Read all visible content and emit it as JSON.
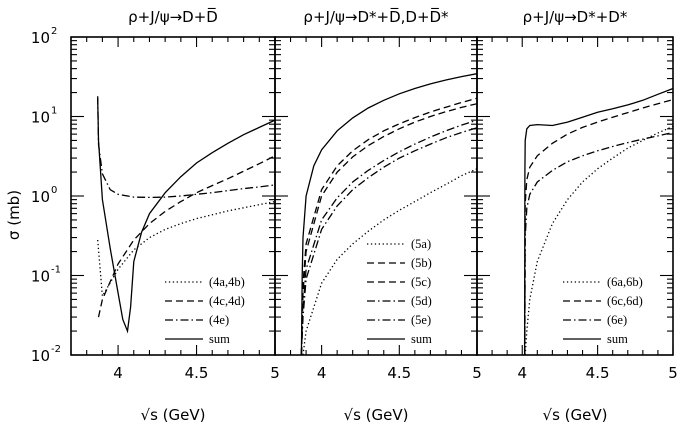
{
  "chart_data": {
    "type": "line",
    "shared_ylabel": "σ (mb)",
    "yscale": "log",
    "ylim": [
      0.01,
      100
    ],
    "xlim": [
      3.7,
      5.0
    ],
    "x_ticks": [
      "4",
      "4.5",
      "5"
    ],
    "y_tick_labels": [
      {
        "base": "10",
        "exp": "2"
      },
      {
        "base": "10",
        "exp": "1"
      },
      {
        "base": "10",
        "exp": "0"
      },
      {
        "base": "10",
        "exp": "-1"
      },
      {
        "base": "10",
        "exp": "-2"
      }
    ],
    "panels": [
      {
        "title": "ρ+J/ψ→D+D̅",
        "xlabel": "√s (GeV)",
        "series": [
          {
            "name": "(4a,4b)",
            "style": "dotted",
            "x": [
              3.87,
              3.9,
              4.0,
              4.1,
              4.2,
              4.3,
              4.4,
              4.5,
              4.6,
              4.7,
              4.8,
              4.9,
              5.0
            ],
            "y": [
              0.28,
              0.055,
              0.12,
              0.21,
              0.3,
              0.38,
              0.45,
              0.52,
              0.58,
              0.65,
              0.71,
              0.78,
              0.85
            ]
          },
          {
            "name": "(4c,4d)",
            "style": "dashed",
            "x": [
              3.875,
              3.9,
              4.0,
              4.1,
              4.2,
              4.3,
              4.4,
              4.5,
              4.6,
              4.7,
              4.8,
              4.9,
              5.0
            ],
            "y": [
              0.03,
              0.05,
              0.14,
              0.28,
              0.45,
              0.64,
              0.85,
              1.1,
              1.35,
              1.65,
              2.05,
              2.55,
              3.2
            ]
          },
          {
            "name": "(4e)",
            "style": "dashdot",
            "x": [
              3.87,
              3.875,
              3.9,
              3.95,
              4.0,
              4.1,
              4.2,
              4.3,
              4.4,
              4.5,
              4.6,
              4.7,
              4.8,
              4.9,
              5.0
            ],
            "y": [
              18,
              4.5,
              1.9,
              1.2,
              1.05,
              0.97,
              0.96,
              0.97,
              1.0,
              1.05,
              1.1,
              1.17,
              1.24,
              1.3,
              1.38
            ]
          },
          {
            "name": "sum",
            "style": "solid",
            "x": [
              3.87,
              3.875,
              3.9,
              3.95,
              4.0,
              4.03,
              4.06,
              4.08,
              4.1,
              4.15,
              4.2,
              4.3,
              4.4,
              4.5,
              4.6,
              4.7,
              4.8,
              4.9,
              5.0
            ],
            "y": [
              17,
              5,
              0.9,
              0.22,
              0.06,
              0.028,
              0.02,
              0.04,
              0.15,
              0.35,
              0.6,
              1.1,
              1.75,
              2.6,
              3.5,
              4.6,
              5.9,
              7.3,
              9.0
            ]
          }
        ]
      },
      {
        "title": "ρ+J/ψ→D*+D̅,D+D̅*",
        "xlabel": "√s (GeV)",
        "series": [
          {
            "name": "(5a)",
            "style": "dotted",
            "x": [
              3.88,
              3.9,
              4.0,
              4.1,
              4.2,
              4.3,
              4.4,
              4.5,
              4.6,
              4.7,
              4.8,
              4.9,
              5.0
            ],
            "y": [
              0.01,
              0.02,
              0.08,
              0.16,
              0.25,
              0.36,
              0.5,
              0.66,
              0.85,
              1.1,
              1.4,
              1.8,
              2.2
            ]
          },
          {
            "name": "(5b)",
            "style": "dashed",
            "x": [
              3.87,
              3.88,
              3.9,
              4.0,
              4.1,
              4.2,
              4.3,
              4.4,
              4.5,
              4.6,
              4.7,
              4.8,
              4.9,
              5.0
            ],
            "y": [
              0.01,
              0.08,
              0.25,
              1.2,
              2.4,
              3.7,
              5.1,
              6.6,
              8.1,
              9.7,
              11.4,
              13.1,
              15,
              17
            ]
          },
          {
            "name": "(5c)",
            "style": "dashed",
            "x": [
              3.87,
              3.88,
              3.9,
              4.0,
              4.1,
              4.2,
              4.3,
              4.4,
              4.5,
              4.6,
              4.7,
              4.8,
              4.9,
              5.0
            ],
            "y": [
              0.01,
              0.06,
              0.2,
              1.0,
              2.0,
              3.1,
              4.3,
              5.6,
              7.0,
              8.5,
              10,
              11.5,
              13,
              14.5
            ]
          },
          {
            "name": "(5d)",
            "style": "dashdot",
            "x": [
              3.87,
              3.88,
              3.9,
              4.0,
              4.1,
              4.2,
              4.3,
              4.4,
              4.5,
              4.6,
              4.7,
              4.8,
              4.9,
              5.0
            ],
            "y": [
              0.01,
              0.04,
              0.12,
              0.5,
              0.95,
              1.5,
              2.1,
              2.8,
              3.6,
              4.5,
              5.5,
              6.6,
              7.8,
              9.0
            ]
          },
          {
            "name": "(5e)",
            "style": "dashdot",
            "x": [
              3.87,
              3.88,
              3.9,
              4.0,
              4.1,
              4.2,
              4.3,
              4.4,
              4.5,
              4.6,
              4.7,
              4.8,
              4.9,
              5.0
            ],
            "y": [
              0.01,
              0.03,
              0.09,
              0.38,
              0.75,
              1.2,
              1.7,
              2.3,
              3.0,
              3.7,
              4.5,
              5.4,
              6.3,
              7.2
            ]
          },
          {
            "name": "sum",
            "style": "solid",
            "x": [
              3.87,
              3.875,
              3.88,
              3.9,
              3.95,
              4.0,
              4.1,
              4.2,
              4.3,
              4.4,
              4.5,
              4.6,
              4.7,
              4.8,
              4.9,
              5.0
            ],
            "y": [
              0.01,
              0.1,
              0.3,
              1.0,
              2.4,
              3.8,
              6.6,
              9.6,
              12.8,
              16,
              19.3,
              22.5,
              25.7,
              28.8,
              31.8,
              34.5
            ]
          }
        ]
      },
      {
        "title": "ρ+J/ψ→D*+D*",
        "xlabel": "√s (GeV)",
        "series": [
          {
            "name": "(6a,6b)",
            "style": "dotted",
            "x": [
              4.02,
              4.03,
              4.05,
              4.1,
              4.2,
              4.3,
              4.4,
              4.5,
              4.6,
              4.7,
              4.8,
              4.9,
              5.0
            ],
            "y": [
              0.01,
              0.02,
              0.05,
              0.15,
              0.45,
              0.9,
              1.5,
              2.2,
              3.0,
              4.0,
              5.0,
              6.2,
              7.5
            ]
          },
          {
            "name": "(6c,6d)",
            "style": "dashed",
            "x": [
              4.017,
              4.02,
              4.03,
              4.05,
              4.1,
              4.2,
              4.3,
              4.4,
              4.5,
              4.6,
              4.7,
              4.8,
              4.9,
              5.0
            ],
            "y": [
              0.01,
              0.8,
              1.6,
              2.3,
              3.2,
              4.6,
              6.0,
              7.3,
              8.5,
              9.8,
              11.2,
              12.8,
              14.5,
              16.3
            ]
          },
          {
            "name": "(6e)",
            "style": "dashdot",
            "x": [
              4.017,
              4.02,
              4.03,
              4.05,
              4.1,
              4.2,
              4.3,
              4.4,
              4.5,
              4.6,
              4.7,
              4.8,
              4.9,
              5.0
            ],
            "y": [
              0.01,
              0.3,
              0.7,
              1.05,
              1.5,
              2.1,
              2.7,
              3.2,
              3.7,
              4.2,
              4.7,
              5.2,
              5.7,
              6.3
            ]
          },
          {
            "name": "sum",
            "style": "solid",
            "x": [
              4.016,
              4.018,
              4.02,
              4.03,
              4.05,
              4.1,
              4.2,
              4.3,
              4.4,
              4.5,
              4.6,
              4.7,
              4.8,
              4.9,
              5.0
            ],
            "y": [
              0.01,
              2.0,
              5.0,
              7.0,
              7.7,
              7.9,
              7.7,
              8.5,
              9.8,
              11.3,
              12.5,
              14.0,
              16.0,
              19.0,
              22.5
            ]
          }
        ]
      }
    ]
  }
}
